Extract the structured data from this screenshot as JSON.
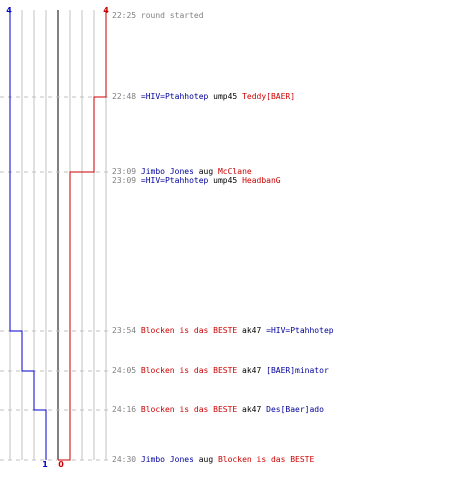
{
  "colors": {
    "team_blue": "#0000cc",
    "team_red": "#cc0000",
    "grid": "#c0c0c0",
    "center": "#808080",
    "dash": "#c0c0c0",
    "time": "#808080",
    "weapon": "#000000"
  },
  "scores": {
    "blue_start": "4",
    "red_start": "4",
    "blue_end": "1",
    "red_end": "0"
  },
  "events": [
    {
      "time": "22:25",
      "message": "round started"
    },
    {
      "time": "22:48",
      "killer": "=HIV=Ptahhotep",
      "killer_team": "blue",
      "weapon": "ump45",
      "victim": "Teddy[BAER]",
      "victim_team": "red"
    },
    {
      "time": "23:09",
      "killer": "Jimbo Jones",
      "killer_team": "blue",
      "weapon": "aug",
      "victim": "McClane",
      "victim_team": "red"
    },
    {
      "time": "23:09",
      "killer": "=HIV=Ptahhotep",
      "killer_team": "blue",
      "weapon": "ump45",
      "victim": "HeadbanG",
      "victim_team": "red"
    },
    {
      "time": "23:54",
      "killer": "Blocken is das BESTE",
      "killer_team": "red",
      "weapon": "ak47",
      "victim": "=HIV=Ptahhotep",
      "victim_team": "blue"
    },
    {
      "time": "24:05",
      "killer": "Blocken is das BESTE",
      "killer_team": "red",
      "weapon": "ak47",
      "victim": "[BAER]minator",
      "victim_team": "blue"
    },
    {
      "time": "24:16",
      "killer": "Blocken is das BESTE",
      "killer_team": "red",
      "weapon": "ak47",
      "victim": "Des[Baer]ado",
      "victim_team": "blue"
    },
    {
      "time": "24:30",
      "killer": "Jimbo Jones",
      "killer_team": "blue",
      "weapon": "aug",
      "victim": "Blocken is das BESTE",
      "victim_team": "red"
    }
  ]
}
